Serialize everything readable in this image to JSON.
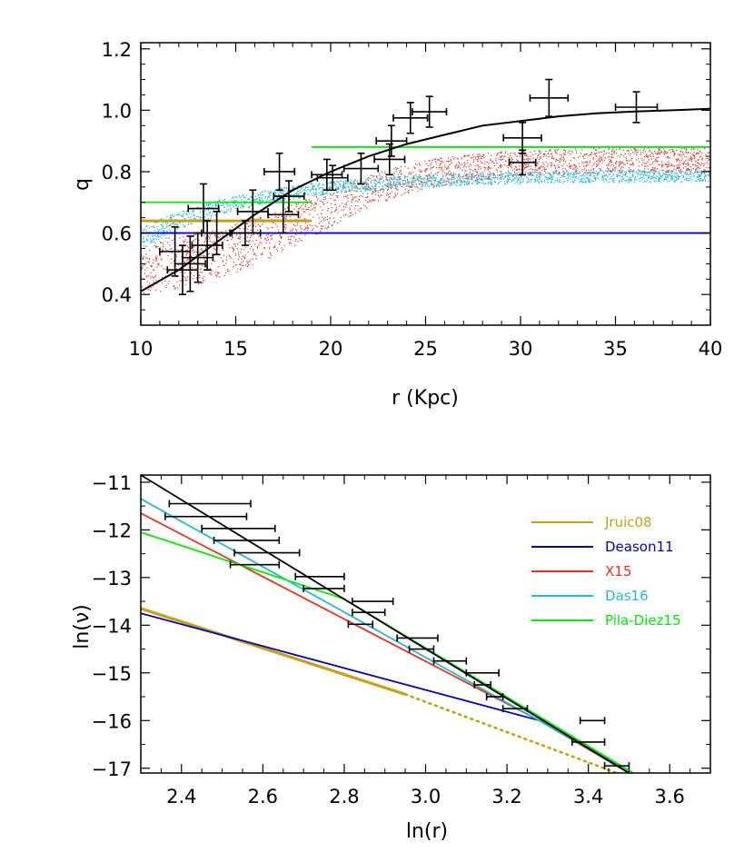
{
  "chart_data": [
    {
      "type": "scatter",
      "xlabel": "r (Kpc)",
      "ylabel": "q",
      "xlim": [
        10,
        40
      ],
      "ylim": [
        0.3,
        1.22
      ],
      "xticks": [
        "10",
        "15",
        "20",
        "25",
        "30",
        "35",
        "40"
      ],
      "yticks": [
        "0.4",
        "0.6",
        "0.8",
        "1.0",
        "1.2"
      ],
      "colors": {
        "fit": "#000000",
        "jruic": "#c8a012",
        "deason": "#0000cc",
        "pila": "#00ee00",
        "x15_cloud": "#e8321e",
        "das_cloud": "#22b8d8"
      },
      "fit_curve": [
        [
          10,
          0.41
        ],
        [
          12,
          0.48
        ],
        [
          14,
          0.57
        ],
        [
          16,
          0.66
        ],
        [
          18,
          0.74
        ],
        [
          20,
          0.8
        ],
        [
          22,
          0.85
        ],
        [
          24,
          0.89
        ],
        [
          26,
          0.92
        ],
        [
          28,
          0.95
        ],
        [
          30,
          0.965
        ],
        [
          32,
          0.98
        ],
        [
          34,
          0.99
        ],
        [
          36,
          0.996
        ],
        [
          38,
          1.0
        ],
        [
          40,
          1.005
        ]
      ],
      "hlines": [
        {
          "y": 0.6,
          "x0": 10,
          "x1": 40,
          "color": "#0000cc"
        },
        {
          "y": 0.7,
          "x0": 10,
          "x1": 19,
          "color": "#00ee00"
        },
        {
          "y": 0.88,
          "x0": 19,
          "x1": 40,
          "color": "#00ee00"
        },
        {
          "y": 0.64,
          "x0": 10,
          "x1": 19,
          "color": "#c8a012",
          "thick": true
        }
      ],
      "points": [
        {
          "x": 11.8,
          "y": 0.54,
          "xerr": 0.8,
          "yerr": 0.08
        },
        {
          "x": 12.2,
          "y": 0.48,
          "xerr": 0.8,
          "yerr": 0.08
        },
        {
          "x": 12.6,
          "y": 0.5,
          "xerr": 0.8,
          "yerr": 0.09
        },
        {
          "x": 13.0,
          "y": 0.52,
          "xerr": 0.8,
          "yerr": 0.08
        },
        {
          "x": 13.3,
          "y": 0.68,
          "xerr": 0.8,
          "yerr": 0.08
        },
        {
          "x": 13.5,
          "y": 0.56,
          "xerr": 0.8,
          "yerr": 0.08
        },
        {
          "x": 14.0,
          "y": 0.6,
          "xerr": 0.8,
          "yerr": 0.07
        },
        {
          "x": 15.5,
          "y": 0.6,
          "xerr": 0.8,
          "yerr": 0.04
        },
        {
          "x": 15.9,
          "y": 0.67,
          "xerr": 0.8,
          "yerr": 0.07
        },
        {
          "x": 17.3,
          "y": 0.8,
          "xerr": 0.8,
          "yerr": 0.06
        },
        {
          "x": 17.5,
          "y": 0.66,
          "xerr": 0.8,
          "yerr": 0.06
        },
        {
          "x": 17.8,
          "y": 0.72,
          "xerr": 0.8,
          "yerr": 0.05
        },
        {
          "x": 19.8,
          "y": 0.79,
          "xerr": 0.8,
          "yerr": 0.05
        },
        {
          "x": 20.1,
          "y": 0.78,
          "xerr": 0.8,
          "yerr": 0.04
        },
        {
          "x": 21.6,
          "y": 0.81,
          "xerr": 0.9,
          "yerr": 0.05
        },
        {
          "x": 23.1,
          "y": 0.84,
          "xerr": 0.8,
          "yerr": 0.05
        },
        {
          "x": 23.2,
          "y": 0.9,
          "xerr": 0.8,
          "yerr": 0.05
        },
        {
          "x": 24.2,
          "y": 0.975,
          "xerr": 0.9,
          "yerr": 0.05
        },
        {
          "x": 25.2,
          "y": 0.995,
          "xerr": 0.9,
          "yerr": 0.05
        },
        {
          "x": 30.1,
          "y": 0.91,
          "xerr": 1.0,
          "yerr": 0.05
        },
        {
          "x": 30.1,
          "y": 0.83,
          "xerr": 0.7,
          "yerr": 0.04
        },
        {
          "x": 31.5,
          "y": 1.04,
          "xerr": 1.0,
          "yerr": 0.06
        },
        {
          "x": 36.1,
          "y": 1.01,
          "xerr": 1.1,
          "yerr": 0.05
        }
      ]
    },
    {
      "type": "line",
      "xlabel": "ln(r)",
      "ylabel": "ln(ν)",
      "xlim": [
        2.3,
        3.7
      ],
      "ylim": [
        -17.1,
        -10.85
      ],
      "xticks": [
        "2.4",
        "2.6",
        "2.8",
        "3.0",
        "3.2",
        "3.4",
        "3.6"
      ],
      "yticks": [
        "-11",
        "-12",
        "-13",
        "-14",
        "-15",
        "-16",
        "-17"
      ],
      "legend_position": "top-right",
      "series": [
        {
          "name": "Jruic08",
          "color": "#c8a012",
          "points": [
            [
              2.3,
              -13.65
            ],
            [
              2.95,
              -15.45
            ]
          ],
          "thick": true
        },
        {
          "name": "Jruic08-extension",
          "color": "#c8a012",
          "points": [
            [
              2.95,
              -15.45
            ],
            [
              3.47,
              -17.1
            ]
          ],
          "dotted": true
        },
        {
          "name": "Deason11",
          "color": "#0000cc",
          "points": [
            [
              2.3,
              -13.75
            ],
            [
              3.28,
              -16.0
            ],
            [
              3.5,
              -17.1
            ]
          ]
        },
        {
          "name": "X15",
          "color": "#e8321e",
          "points": [
            [
              2.3,
              -11.65
            ],
            [
              3.28,
              -16.0
            ],
            [
              3.5,
              -17.1
            ]
          ]
        },
        {
          "name": "Das16",
          "color": "#22b8d8",
          "points": [
            [
              2.3,
              -11.35
            ],
            [
              3.51,
              -17.1
            ]
          ]
        },
        {
          "name": "Pila-Diez15",
          "color": "#00ee00",
          "points": [
            [
              2.3,
              -12.05
            ],
            [
              2.8,
              -13.45
            ],
            [
              3.51,
              -17.1
            ]
          ]
        },
        {
          "name": "fit",
          "color": "#000000",
          "points": [
            [
              2.3,
              -10.85
            ],
            [
              3.5,
              -17.1
            ]
          ]
        }
      ],
      "errorbars": [
        {
          "x": 2.47,
          "y": -11.45,
          "xerr": 0.1
        },
        {
          "x": 2.46,
          "y": -11.72,
          "xerr": 0.1
        },
        {
          "x": 2.54,
          "y": -11.97,
          "xerr": 0.09
        },
        {
          "x": 2.56,
          "y": -12.22,
          "xerr": 0.08
        },
        {
          "x": 2.61,
          "y": -12.48,
          "xerr": 0.08
        },
        {
          "x": 2.58,
          "y": -12.73,
          "xerr": 0.06
        },
        {
          "x": 2.74,
          "y": -12.98,
          "xerr": 0.06
        },
        {
          "x": 2.75,
          "y": -13.23,
          "xerr": 0.05
        },
        {
          "x": 2.87,
          "y": -13.5,
          "xerr": 0.05
        },
        {
          "x": 2.86,
          "y": -13.73,
          "xerr": 0.04
        },
        {
          "x": 2.84,
          "y": -13.98,
          "xerr": 0.03
        },
        {
          "x": 2.98,
          "y": -14.27,
          "xerr": 0.05
        },
        {
          "x": 2.99,
          "y": -14.5,
          "xerr": 0.03
        },
        {
          "x": 3.06,
          "y": -14.75,
          "xerr": 0.04
        },
        {
          "x": 3.14,
          "y": -15.0,
          "xerr": 0.04
        },
        {
          "x": 3.14,
          "y": -15.25,
          "xerr": 0.02
        },
        {
          "x": 3.17,
          "y": -15.5,
          "xerr": 0.02
        },
        {
          "x": 3.22,
          "y": -15.75,
          "xerr": 0.03
        },
        {
          "x": 3.41,
          "y": -16.0,
          "xerr": 0.03
        },
        {
          "x": 3.4,
          "y": -16.45,
          "xerr": 0.04
        },
        {
          "x": 3.47,
          "y": -16.95,
          "xerr": 0.03
        }
      ]
    }
  ],
  "legend": [
    {
      "label": "Jruic08",
      "color": "#c8a012"
    },
    {
      "label": "Deason11",
      "color": "#0000cc"
    },
    {
      "label": "X15",
      "color": "#e8321e"
    },
    {
      "label": "Das16",
      "color": "#22b8d8"
    },
    {
      "label": "Pila-Diez15",
      "color": "#00ee00"
    }
  ]
}
